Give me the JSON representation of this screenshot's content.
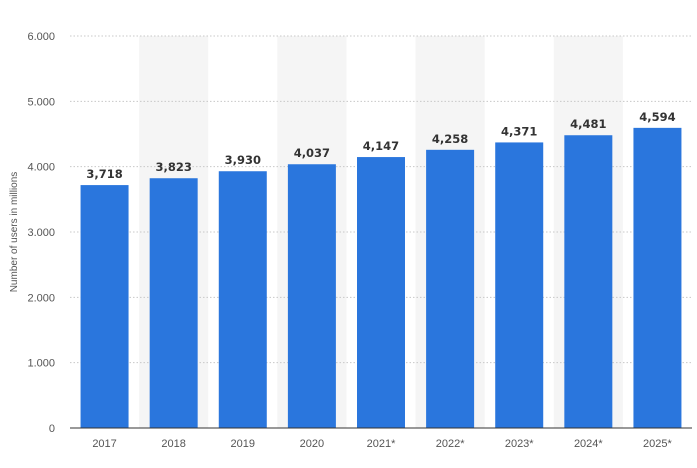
{
  "chart_data": {
    "type": "bar",
    "categories": [
      "2017",
      "2018",
      "2019",
      "2020",
      "2021*",
      "2022*",
      "2023*",
      "2024*",
      "2025*"
    ],
    "values": [
      3718,
      3823,
      3930,
      4037,
      4147,
      4258,
      4371,
      4481,
      4594
    ],
    "value_labels": [
      "3,718",
      "3,823",
      "3,930",
      "4,037",
      "4,147",
      "4,258",
      "4,371",
      "4,481",
      "4,594"
    ],
    "y_ticks": [
      0,
      1000,
      2000,
      3000,
      4000,
      5000,
      6000
    ],
    "y_tick_labels": [
      "0",
      "1.000",
      "2.000",
      "3.000",
      "4.000",
      "5.000",
      "6.000"
    ],
    "ylabel": "Number of users in millions",
    "xlabel": "",
    "title": "",
    "ylim": [
      0,
      6000
    ],
    "grid": true,
    "legend": "none",
    "bar_color": "#2a76dd",
    "alt_band_color": "#f5f5f5",
    "grid_color": "#c8c8c8"
  }
}
